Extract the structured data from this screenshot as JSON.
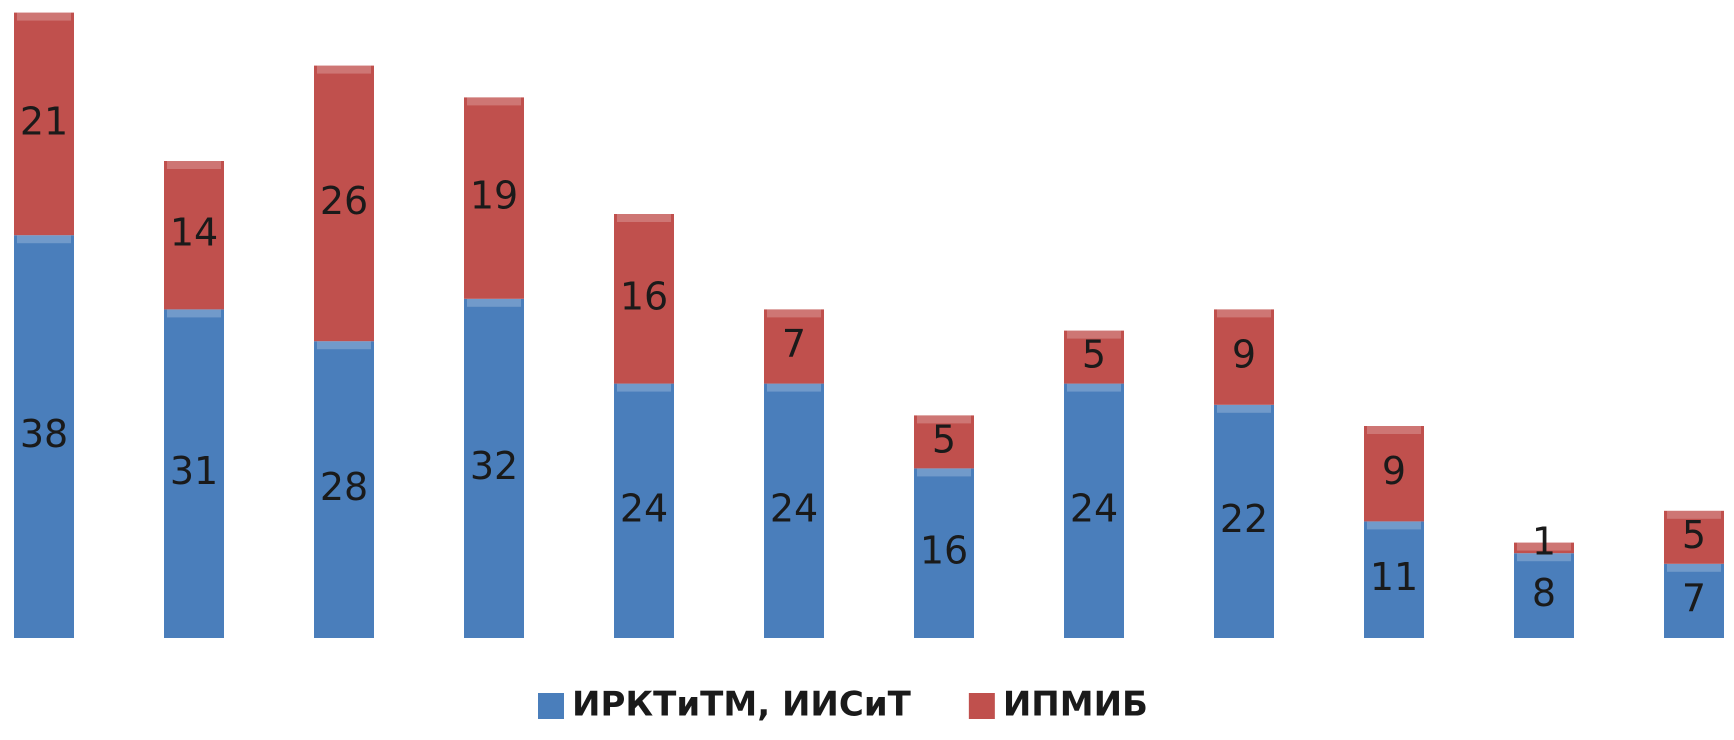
{
  "chart_data": {
    "type": "stacked-bar",
    "categories": [
      null,
      null,
      null,
      null,
      null,
      null,
      null,
      null,
      null,
      null,
      null,
      null
    ],
    "series": [
      {
        "name": "ИРКТиТМ, ИИСиТ",
        "color": "#4a7ebb",
        "values": [
          38,
          31,
          28,
          32,
          24,
          24,
          16,
          24,
          22,
          11,
          8,
          7
        ]
      },
      {
        "name": "ИПМИБ",
        "color": "#c0504d",
        "values": [
          21,
          14,
          26,
          19,
          16,
          7,
          5,
          5,
          9,
          9,
          1,
          5
        ]
      }
    ],
    "legend": "bottom"
  }
}
